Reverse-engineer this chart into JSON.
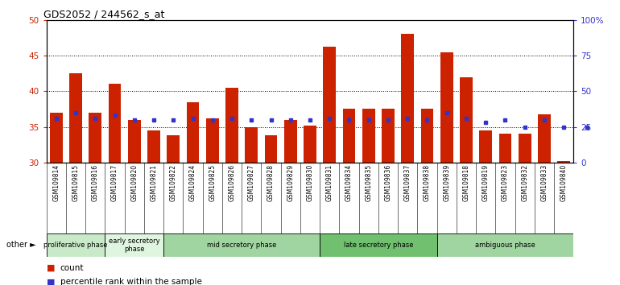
{
  "title": "GDS2052 / 244562_s_at",
  "samples": [
    "GSM109814",
    "GSM109815",
    "GSM109816",
    "GSM109817",
    "GSM109820",
    "GSM109821",
    "GSM109822",
    "GSM109824",
    "GSM109825",
    "GSM109826",
    "GSM109827",
    "GSM109828",
    "GSM109829",
    "GSM109830",
    "GSM109831",
    "GSM109834",
    "GSM109835",
    "GSM109836",
    "GSM109837",
    "GSM109838",
    "GSM109839",
    "GSM109818",
    "GSM109819",
    "GSM109823",
    "GSM109832",
    "GSM109833",
    "GSM109840"
  ],
  "count_values": [
    37.0,
    42.5,
    37.0,
    41.0,
    36.0,
    34.5,
    33.8,
    38.5,
    36.2,
    40.5,
    35.0,
    33.8,
    36.0,
    35.2,
    46.2,
    37.5,
    37.5,
    37.5,
    48.0,
    37.5,
    45.5,
    42.0,
    34.5,
    34.0,
    34.0,
    36.8,
    30.2
  ],
  "pct_right": [
    31,
    35,
    31,
    33,
    30,
    30,
    30,
    31,
    30,
    31,
    30,
    30,
    30,
    30,
    31,
    30,
    30,
    30,
    31,
    30,
    35,
    31,
    28,
    30,
    25,
    30,
    25
  ],
  "phases": [
    {
      "name": "proliferative phase",
      "start": 0,
      "end": 3,
      "color": "#c8eac8"
    },
    {
      "name": "early secretory\nphase",
      "start": 3,
      "end": 6,
      "color": "#e0f5e0"
    },
    {
      "name": "mid secretory phase",
      "start": 6,
      "end": 14,
      "color": "#a0d4a0"
    },
    {
      "name": "late secretory phase",
      "start": 14,
      "end": 20,
      "color": "#70c070"
    },
    {
      "name": "ambiguous phase",
      "start": 20,
      "end": 27,
      "color": "#a0d4a0"
    }
  ],
  "ylim_left": [
    30,
    50
  ],
  "ylim_right": [
    0,
    100
  ],
  "yticks_left": [
    30,
    35,
    40,
    45,
    50
  ],
  "yticks_right": [
    0,
    25,
    50,
    75,
    100
  ],
  "bar_color": "#cc2200",
  "dot_color": "#3333cc",
  "left_axis_color": "#cc2200",
  "right_axis_color": "#3333cc",
  "xtick_bg": "#d8d8d8"
}
